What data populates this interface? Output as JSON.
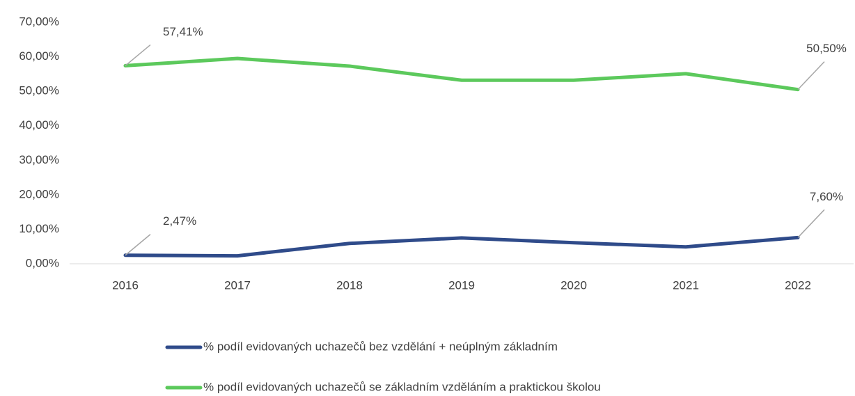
{
  "chart_data": {
    "type": "line",
    "categories": [
      "2016",
      "2017",
      "2018",
      "2019",
      "2020",
      "2021",
      "2022"
    ],
    "series": [
      {
        "name": "% podíl evidovaných uchazečů bez vzdělání + neúplným základním",
        "color": "#2f4b8a",
        "values": [
          2.47,
          2.3,
          5.9,
          7.5,
          6.1,
          4.9,
          7.6
        ],
        "value_labels": [
          "2,47%",
          null,
          null,
          null,
          null,
          null,
          "7,60%"
        ]
      },
      {
        "name": "% podíl evidovaných uchazečů se základním vzděláním a praktickou školou",
        "color": "#5cc95c",
        "values": [
          57.41,
          59.5,
          57.3,
          53.2,
          53.2,
          55.1,
          50.5
        ],
        "value_labels": [
          "57,41%",
          null,
          null,
          null,
          null,
          null,
          "50,50%"
        ]
      }
    ],
    "ylim": [
      0,
      70
    ],
    "yticks": [
      {
        "value": 0,
        "label": "0,00%"
      },
      {
        "value": 10,
        "label": "10,00%"
      },
      {
        "value": 20,
        "label": "20,00%"
      },
      {
        "value": 30,
        "label": "30,00%"
      },
      {
        "value": 40,
        "label": "40,00%"
      },
      {
        "value": 50,
        "label": "50,00%"
      },
      {
        "value": 60,
        "label": "60,00%"
      },
      {
        "value": 70,
        "label": "70,00%"
      }
    ],
    "grid": false
  }
}
